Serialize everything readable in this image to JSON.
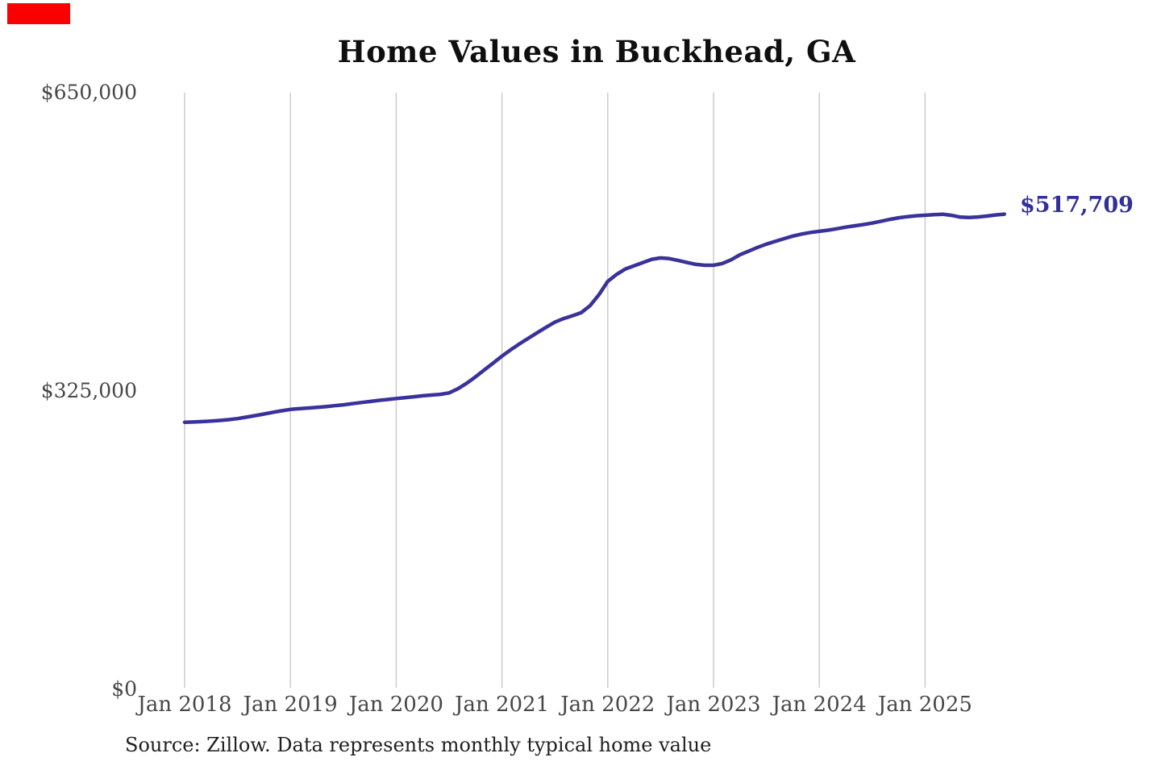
{
  "page": {
    "background": "#ffffff"
  },
  "marker": {
    "color": "#fb0000"
  },
  "header": {
    "title": "Home Values in Buckhead, GA"
  },
  "y_axis": {
    "ticks": [
      {
        "label": "$650,000",
        "value": 650000
      },
      {
        "label": "$325,000",
        "value": 325000
      },
      {
        "label": "$0",
        "value": 0
      }
    ]
  },
  "x_axis": {
    "ticks": [
      "Jan 2018",
      "Jan 2019",
      "Jan 2020",
      "Jan 2021",
      "Jan 2022",
      "Jan 2023",
      "Jan 2024",
      "Jan 2025"
    ]
  },
  "annotations": {
    "end_label": "$517,709"
  },
  "footer": {
    "source_note": "Source: Zillow. Data represents monthly typical home value"
  },
  "colors": {
    "line": "#39329b",
    "end_label": "#31309b",
    "gridline": "#cccccc",
    "axis_text": "#474747",
    "title_text": "#0f0f0f",
    "source_text": "#1f1f1f"
  },
  "chart_data": {
    "type": "line",
    "title": "Home Values in Buckhead, GA",
    "series_name": "Monthly typical home value",
    "frequency": "monthly",
    "x_start": "Jan 2018",
    "x_end": "Oct 2025",
    "ylim": [
      0,
      650000
    ],
    "y_tick_values": [
      0,
      325000,
      650000
    ],
    "x_tick_labels": [
      "Jan 2018",
      "Jan 2019",
      "Jan 2020",
      "Jan 2021",
      "Jan 2022",
      "Jan 2023",
      "Jan 2024",
      "Jan 2025"
    ],
    "final_value": 517709,
    "legend": "none",
    "grid": "vertical-only",
    "values": [
      291000,
      291300,
      291700,
      292200,
      292900,
      293800,
      295000,
      296500,
      298200,
      300000,
      301800,
      303500,
      305000,
      305800,
      306500,
      307200,
      308000,
      309000,
      310000,
      311200,
      312400,
      313600,
      314800,
      315800,
      316800,
      317800,
      318800,
      319800,
      320600,
      321400,
      323000,
      327500,
      333500,
      340500,
      348000,
      355500,
      363000,
      370000,
      376500,
      382500,
      388500,
      394500,
      400000,
      404000,
      407000,
      410500,
      418000,
      430000,
      444500,
      452000,
      458000,
      461500,
      465000,
      468500,
      470000,
      469200,
      467200,
      465000,
      463000,
      462000,
      462000,
      464000,
      468000,
      473500,
      477500,
      481500,
      485000,
      488000,
      491000,
      493800,
      496000,
      497800,
      499000,
      500200,
      501800,
      503600,
      505000,
      506400,
      508000,
      510000,
      512000,
      513800,
      515000,
      516000,
      516500,
      517200,
      517600,
      516400,
      514500,
      514000,
      514600,
      515600,
      516800,
      517709
    ]
  }
}
